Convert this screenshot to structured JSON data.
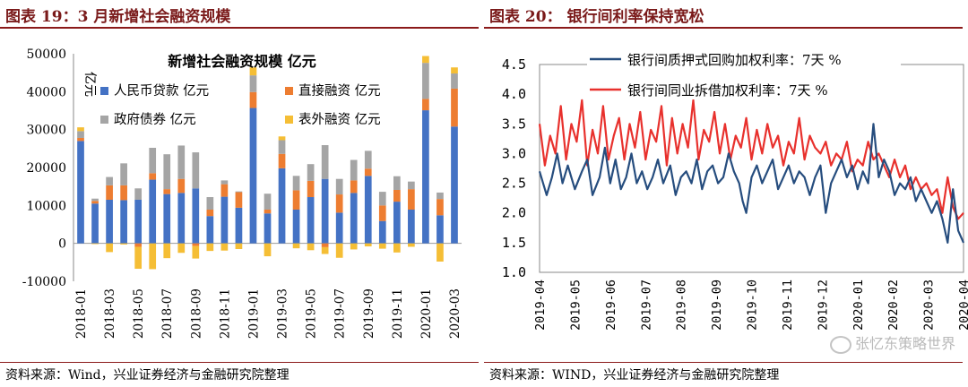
{
  "left_panel": {
    "figure_title": "图表 19：3 月新增社会融资规模",
    "source": "资料来源：Wind，兴业证券经济与金融研究院整理"
  },
  "right_panel": {
    "figure_title": "图表 20：  银行间利率保持宽松",
    "source": "资料来源：WIND，兴业证券经济与金融研究院整理"
  },
  "watermark": "张忆东策略世界",
  "watermark_icon": "wechat-icon",
  "chart_data": [
    {
      "type": "bar",
      "stacked": true,
      "title": "新增社会融资规模 亿元",
      "ylabel": "亿元",
      "ylim": [
        -10000,
        50000
      ],
      "yticks": [
        -10000,
        0,
        10000,
        20000,
        30000,
        40000,
        50000
      ],
      "grid": false,
      "legend_position": "top-left",
      "categories": [
        "2018-01",
        "2018-02",
        "2018-03",
        "2018-04",
        "2018-05",
        "2018-06",
        "2018-07",
        "2018-08",
        "2018-09",
        "2018-10",
        "2018-11",
        "2018-12",
        "2019-01",
        "2019-02",
        "2019-03",
        "2019-04",
        "2019-05",
        "2019-06",
        "2019-07",
        "2019-08",
        "2019-09",
        "2019-10",
        "2019-11",
        "2019-12",
        "2020-01",
        "2020-02",
        "2020-03"
      ],
      "tick_labels": [
        "2018-01",
        "2018-03",
        "2018-05",
        "2018-07",
        "2018-09",
        "2018-11",
        "2019-01",
        "2019-03",
        "2019-05",
        "2019-07",
        "2019-09",
        "2019-11",
        "2020-01",
        "2020-03"
      ],
      "series": [
        {
          "name": "人民币贷款 亿元",
          "color": "#4472c4",
          "values": [
            27000,
            10500,
            11500,
            11400,
            11500,
            16800,
            13000,
            13300,
            14500,
            7200,
            12300,
            9400,
            35700,
            7900,
            19800,
            8900,
            12200,
            17000,
            8100,
            13300,
            17800,
            5900,
            11000,
            8900,
            35100,
            7400,
            30800
          ]
        },
        {
          "name": "直接融资 亿元",
          "color": "#ed7d31",
          "values": [
            800,
            700,
            3800,
            3900,
            -900,
            1700,
            1300,
            3700,
            -700,
            1700,
            3300,
            4100,
            4200,
            1000,
            3800,
            5100,
            4300,
            -1000,
            4800,
            3300,
            1900,
            4100,
            3100,
            5400,
            3000,
            4300,
            10000
          ]
        },
        {
          "name": "政府债券 亿元",
          "color": "#a5a5a5",
          "values": [
            1800,
            600,
            2200,
            5800,
            3000,
            6700,
            9200,
            8800,
            9500,
            3300,
            1000,
            200,
            4400,
            4200,
            3600,
            3800,
            4400,
            8900,
            4100,
            5400,
            4700,
            3600,
            3600,
            2000,
            9500,
            1700,
            4000
          ]
        },
        {
          "name": "表外融资 亿元",
          "color": "#f5be35",
          "values": [
            1000,
            -200,
            -2300,
            -300,
            -5800,
            -6800,
            -3900,
            -2500,
            -3300,
            -2000,
            -1900,
            -1500,
            2100,
            -3400,
            1000,
            -1300,
            -1800,
            -1800,
            -3800,
            -1600,
            -800,
            -1400,
            -2400,
            -900,
            1800,
            -4800,
            1600
          ]
        }
      ]
    },
    {
      "type": "line",
      "ylim": [
        1.0,
        4.5
      ],
      "yticks": [
        "1.0",
        "1.5",
        "2.0",
        "2.5",
        "3.0",
        "3.5",
        "4.0",
        "4.5"
      ],
      "grid": false,
      "legend_position": "top",
      "x_tick_labels": [
        "2019-04",
        "2019-05",
        "2019-06",
        "2019-07",
        "2019-08",
        "2019-09",
        "2019-10",
        "2019-11",
        "2019-12",
        "2020-01",
        "2020-02",
        "2020-03",
        "2020-04"
      ],
      "series": [
        {
          "name": "银行间质押式回购加权利率：7天 %",
          "color": "#264d7e",
          "x": [
            0,
            0.2,
            0.35,
            0.5,
            0.65,
            0.8,
            1.0,
            1.2,
            1.35,
            1.5,
            1.7,
            1.85,
            2.0,
            2.15,
            2.3,
            2.45,
            2.6,
            2.75,
            2.9,
            3.05,
            3.2,
            3.35,
            3.5,
            3.7,
            3.85,
            4.0,
            4.15,
            4.3,
            4.45,
            4.6,
            4.75,
            4.9,
            5.05,
            5.2,
            5.35,
            5.5,
            5.65,
            5.75,
            5.85,
            6.0,
            6.15,
            6.3,
            6.45,
            6.6,
            6.75,
            6.9,
            7.05,
            7.2,
            7.35,
            7.5,
            7.65,
            7.8,
            7.95,
            8.1,
            8.25,
            8.4,
            8.55,
            8.7,
            8.85,
            9.0,
            9.15,
            9.3,
            9.45,
            9.6,
            9.75,
            9.9,
            10.05,
            10.2,
            10.35,
            10.5,
            10.65,
            10.8,
            10.95,
            11.1,
            11.25,
            11.4,
            11.55,
            11.7,
            11.85,
            12.0
          ],
          "values": [
            2.7,
            2.3,
            2.6,
            3.0,
            2.5,
            2.8,
            2.4,
            2.7,
            2.9,
            2.3,
            2.6,
            3.1,
            2.5,
            2.9,
            2.4,
            2.6,
            3.0,
            2.5,
            2.7,
            2.4,
            2.6,
            2.9,
            2.5,
            2.8,
            2.3,
            2.6,
            2.7,
            2.5,
            2.9,
            2.4,
            2.7,
            2.8,
            2.5,
            2.6,
            3.0,
            2.7,
            2.5,
            2.2,
            2.0,
            2.6,
            2.8,
            2.5,
            2.7,
            2.9,
            2.4,
            2.6,
            2.8,
            2.5,
            2.7,
            2.6,
            2.3,
            2.6,
            2.8,
            2.0,
            2.5,
            2.7,
            2.9,
            2.6,
            2.8,
            2.4,
            2.7,
            2.5,
            3.5,
            2.6,
            2.9,
            2.7,
            2.3,
            2.5,
            2.4,
            2.6,
            2.2,
            2.4,
            2.2,
            2.0,
            2.2,
            1.9,
            1.5,
            2.4,
            1.7,
            1.5
          ]
        },
        {
          "name": "银行间同业拆借加权利率：7天 %",
          "color": "#e8312d",
          "x": [
            0,
            0.15,
            0.3,
            0.45,
            0.6,
            0.75,
            0.9,
            1.05,
            1.2,
            1.35,
            1.5,
            1.65,
            1.8,
            1.95,
            2.1,
            2.25,
            2.4,
            2.55,
            2.7,
            2.85,
            3.0,
            3.15,
            3.3,
            3.45,
            3.6,
            3.75,
            3.9,
            4.05,
            4.2,
            4.35,
            4.5,
            4.65,
            4.8,
            4.95,
            5.1,
            5.25,
            5.4,
            5.55,
            5.7,
            5.85,
            6.0,
            6.15,
            6.3,
            6.45,
            6.6,
            6.75,
            6.9,
            7.05,
            7.2,
            7.35,
            7.5,
            7.65,
            7.8,
            7.95,
            8.1,
            8.25,
            8.4,
            8.55,
            8.7,
            8.85,
            9.0,
            9.15,
            9.3,
            9.45,
            9.6,
            9.75,
            9.9,
            10.05,
            10.2,
            10.35,
            10.5,
            10.65,
            10.8,
            10.95,
            11.1,
            11.25,
            11.4,
            11.55,
            11.7,
            11.85,
            12.0
          ],
          "values": [
            3.5,
            2.8,
            3.3,
            3.0,
            3.8,
            2.9,
            3.5,
            3.2,
            3.9,
            2.8,
            3.4,
            3.0,
            3.8,
            2.9,
            3.3,
            3.6,
            2.9,
            3.5,
            3.1,
            3.7,
            2.9,
            3.4,
            3.2,
            3.8,
            2.8,
            3.6,
            3.0,
            3.5,
            3.1,
            3.9,
            2.9,
            3.4,
            3.2,
            3.7,
            3.0,
            3.5,
            2.9,
            3.3,
            3.1,
            3.6,
            2.9,
            3.4,
            3.0,
            3.5,
            3.1,
            3.3,
            2.8,
            3.2,
            3.0,
            3.6,
            2.9,
            3.3,
            3.1,
            3.0,
            3.2,
            2.8,
            3.0,
            2.9,
            3.2,
            2.7,
            2.9,
            2.8,
            3.2,
            2.9,
            3.0,
            2.8,
            2.6,
            2.9,
            2.6,
            2.8,
            2.4,
            2.6,
            2.4,
            2.5,
            2.3,
            2.4,
            2.0,
            2.6,
            2.1,
            1.9,
            2.0
          ]
        }
      ]
    }
  ]
}
